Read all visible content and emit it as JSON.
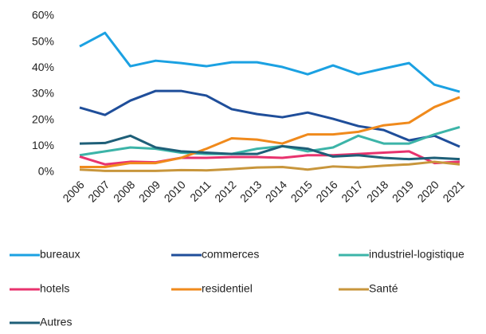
{
  "chart_data": {
    "type": "line",
    "categories": [
      "2006",
      "2007",
      "2008",
      "2009",
      "2010",
      "2011",
      "2012",
      "2013",
      "2014",
      "2015",
      "2016",
      "2017",
      "2018",
      "2019",
      "2020",
      "2021"
    ],
    "ylim": [
      0,
      60
    ],
    "yticks": [
      {
        "value": 0,
        "label": "0%"
      },
      {
        "value": 10,
        "label": "10%"
      },
      {
        "value": 20,
        "label": "20%"
      },
      {
        "value": 30,
        "label": "30%"
      },
      {
        "value": 40,
        "label": "40%"
      },
      {
        "value": 50,
        "label": "50%"
      },
      {
        "value": 60,
        "label": "60%"
      }
    ],
    "grid": false,
    "legend": "bottom",
    "series": [
      {
        "name": "bureaux",
        "color": "#1ba1e2",
        "values": [
          48.3,
          53.5,
          40.7,
          42.8,
          41.9,
          40.7,
          42.2,
          42.2,
          40.4,
          37.6,
          41,
          37.6,
          39.8,
          41.9,
          33.6,
          30.9
        ]
      },
      {
        "name": "commerces",
        "color": "#1f4e9a",
        "values": [
          24.8,
          22,
          27.5,
          31.2,
          31.2,
          29.4,
          24.2,
          22.3,
          21.1,
          22.9,
          20.5,
          17.7,
          16.2,
          12.2,
          14,
          9.8
        ]
      },
      {
        "name": "industriel-logistique",
        "color": "#3cb4a8",
        "values": [
          6.5,
          8,
          9.5,
          9,
          7.5,
          7,
          7,
          9,
          10,
          8,
          9.5,
          14,
          11,
          11,
          14.5,
          17.3
        ]
      },
      {
        "name": "hotels",
        "color": "#e8336e",
        "values": [
          6,
          3,
          4,
          3.8,
          5.5,
          5.5,
          5.8,
          5.8,
          5.5,
          6.5,
          6.5,
          7,
          7.5,
          8,
          3.5,
          4
        ]
      },
      {
        "name": "residentiel",
        "color": "#f08a1c",
        "values": [
          2,
          2,
          3.5,
          3.5,
          5.5,
          9,
          13,
          12.5,
          11,
          14.5,
          14.5,
          15.5,
          18,
          19,
          25,
          28.8
        ]
      },
      {
        "name": "Santé",
        "color": "#c8963c",
        "values": [
          1,
          0.5,
          0.5,
          0.5,
          0.8,
          0.7,
          1.2,
          1.8,
          2,
          1,
          2.2,
          1.8,
          2.5,
          3,
          4,
          3
        ]
      },
      {
        "name": "Autres",
        "color": "#1e5f78",
        "values": [
          11,
          11.2,
          14,
          9.5,
          8,
          7.5,
          7,
          7,
          10,
          9,
          6,
          6.5,
          5.5,
          5,
          5.5,
          5
        ]
      }
    ]
  }
}
